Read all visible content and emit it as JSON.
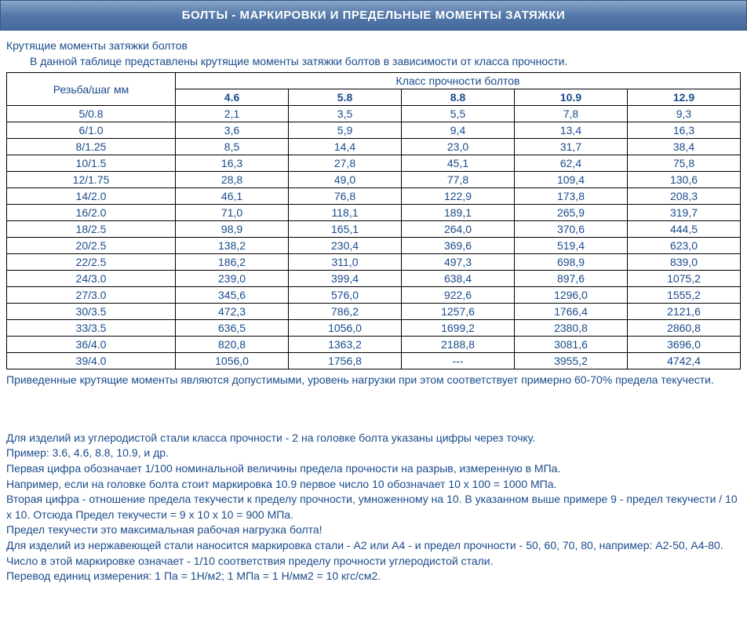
{
  "header": "БОЛТЫ - МАРКИРОВКИ И ПРЕДЕЛЬНЫЕ МОМЕНТЫ ЗАТЯЖКИ",
  "intro": {
    "line1": "Крутящие моменты затяжки болтов",
    "line2": "В данной таблице представлены крутящие моменты затяжки болтов в зависимости от класса прочности."
  },
  "table": {
    "thread_header": "Резьба/шаг мм",
    "class_header": "Класс прочности болтов",
    "classes": [
      "4.6",
      "5.8",
      "8.8",
      "10.9",
      "12.9"
    ],
    "rows": [
      {
        "t": "5/0.8",
        "v": [
          "2,1",
          "3,5",
          "5,5",
          "7,8",
          "9,3"
        ]
      },
      {
        "t": "6/1.0",
        "v": [
          "3,6",
          "5,9",
          "9,4",
          "13,4",
          "16,3"
        ]
      },
      {
        "t": "8/1.25",
        "v": [
          "8,5",
          "14,4",
          "23,0",
          "31,7",
          "38,4"
        ]
      },
      {
        "t": "10/1.5",
        "v": [
          "16,3",
          "27,8",
          "45,1",
          "62,4",
          "75,8"
        ]
      },
      {
        "t": "12/1.75",
        "v": [
          "28,8",
          "49,0",
          "77,8",
          "109,4",
          "130,6"
        ]
      },
      {
        "t": "14/2.0",
        "v": [
          "46,1",
          "76,8",
          "122,9",
          "173,8",
          "208,3"
        ]
      },
      {
        "t": "16/2.0",
        "v": [
          "71,0",
          "118,1",
          "189,1",
          "265,9",
          "319,7"
        ]
      },
      {
        "t": "18/2.5",
        "v": [
          "98,9",
          "165,1",
          "264,0",
          "370,6",
          "444,5"
        ]
      },
      {
        "t": "20/2.5",
        "v": [
          "138,2",
          "230,4",
          "369,6",
          "519,4",
          "623,0"
        ]
      },
      {
        "t": "22/2.5",
        "v": [
          "186,2",
          "311,0",
          "497,3",
          "698,9",
          "839,0"
        ]
      },
      {
        "t": "24/3.0",
        "v": [
          "239,0",
          "399,4",
          "638,4",
          "897,6",
          "1075,2"
        ]
      },
      {
        "t": "27/3.0",
        "v": [
          "345,6",
          "576,0",
          "922,6",
          "1296,0",
          "1555,2"
        ]
      },
      {
        "t": "30/3.5",
        "v": [
          "472,3",
          "786,2",
          "1257,6",
          "1766,4",
          "2121,6"
        ]
      },
      {
        "t": "33/3.5",
        "v": [
          "636,5",
          "1056,0",
          "1699,2",
          "2380,8",
          "2860,8"
        ]
      },
      {
        "t": "36/4.0",
        "v": [
          "820,8",
          "1363,2",
          "2188,8",
          "3081,6",
          "3696,0"
        ]
      },
      {
        "t": "39/4.0",
        "v": [
          "1056,0",
          "1756,8",
          "---",
          "3955,2",
          "4742,4"
        ]
      }
    ]
  },
  "note1": "Приведенные крутящие моменты являются допустимыми, уровень нагрузки при этом соответствует примерно 60-70% предела текучести.",
  "note2": [
    "Для изделий из углеродистой стали класса прочности - 2 на головке болта указаны цифры через точку.",
    "Пример: 3.6, 4.6, 8.8, 10.9, и др.",
    "Первая цифра обозначает 1/100 номинальной величины предела прочности на разрыв, измеренную в МПа.",
    "Например, если на головке болта стоит маркировка 10.9 первое число 10 обозначает 10 х 100 = 1000 МПа.",
    "Вторая цифра - отношение предела текучести к пределу прочности, умноженному на 10. В указанном выше примере 9 - предел текучести / 10 х 10. Отсюда Предел текучести = 9 х 10 х 10 = 900 МПа.",
    "Предел текучести это максимальная рабочая нагрузка болта!",
    "Для изделий из нержавеющей стали наносится маркировка стали - А2 или А4 - и предел прочности - 50, 60, 70, 80, например: А2-50, А4-80.",
    "Число в этой маркировке означает - 1/10 соответствия пределу прочности углеродистой стали.",
    "Перевод единиц измерения: 1 Па = 1Н/м2; 1 МПа = 1 Н/мм2 = 10 кгс/см2."
  ]
}
